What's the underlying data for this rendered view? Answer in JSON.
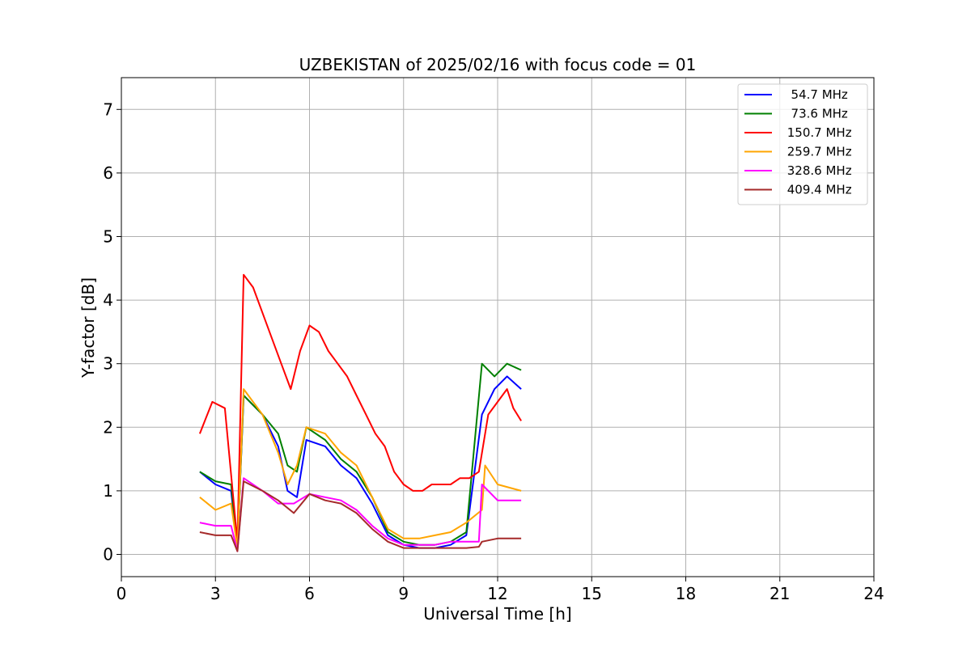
{
  "chart_data": {
    "type": "line",
    "title": "UZBEKISTAN of 2025/02/16 with focus code = 01",
    "xlabel": "Universal Time [h]",
    "ylabel": "Y-factor [dB]",
    "xlim": [
      0,
      24
    ],
    "ylim": [
      -0.35,
      7.5
    ],
    "xticks": [
      0,
      3,
      6,
      9,
      12,
      15,
      18,
      21,
      24
    ],
    "yticks": [
      0,
      1,
      2,
      3,
      4,
      5,
      6,
      7
    ],
    "xtick_labels": [
      "0",
      "3",
      "6",
      "9",
      "12",
      "15",
      "18",
      "21",
      "24"
    ],
    "ytick_labels": [
      "0",
      "1",
      "2",
      "3",
      "4",
      "5",
      "6",
      "7"
    ],
    "grid": true,
    "legend_position": "top-right",
    "series": [
      {
        "name": "  54.7 MHz",
        "color": "#0000ff",
        "x": [
          2.5,
          3.0,
          3.5,
          3.7,
          3.9,
          4.5,
          5.0,
          5.3,
          5.6,
          5.9,
          6.5,
          7.0,
          7.5,
          8.0,
          8.5,
          9.0,
          9.5,
          10.0,
          10.5,
          11.0,
          11.5,
          11.9,
          12.3,
          12.75
        ],
        "y": [
          1.3,
          1.1,
          1.0,
          0.1,
          2.5,
          2.2,
          1.7,
          1.0,
          0.9,
          1.8,
          1.7,
          1.4,
          1.2,
          0.8,
          0.3,
          0.15,
          0.1,
          0.1,
          0.15,
          0.3,
          2.2,
          2.6,
          2.8,
          2.6
        ]
      },
      {
        "name": "  73.6 MHz",
        "color": "#008000",
        "x": [
          2.5,
          3.0,
          3.5,
          3.7,
          3.9,
          4.5,
          5.0,
          5.3,
          5.6,
          5.9,
          6.5,
          7.0,
          7.5,
          8.0,
          8.5,
          9.0,
          9.5,
          10.0,
          10.5,
          11.0,
          11.5,
          11.9,
          12.3,
          12.75
        ],
        "y": [
          1.3,
          1.15,
          1.1,
          0.1,
          2.5,
          2.2,
          1.9,
          1.4,
          1.3,
          2.0,
          1.8,
          1.5,
          1.3,
          0.9,
          0.35,
          0.2,
          0.15,
          0.15,
          0.2,
          0.35,
          3.0,
          2.8,
          3.0,
          2.9
        ]
      },
      {
        "name": " 150.7 MHz",
        "color": "#ff0000",
        "x": [
          2.5,
          2.9,
          3.3,
          3.7,
          3.9,
          4.2,
          4.5,
          4.8,
          5.1,
          5.4,
          5.7,
          6.0,
          6.3,
          6.6,
          6.9,
          7.2,
          7.5,
          7.8,
          8.1,
          8.4,
          8.7,
          9.0,
          9.3,
          9.6,
          9.9,
          10.2,
          10.5,
          10.8,
          11.1,
          11.4,
          11.7,
          12.0,
          12.3,
          12.5,
          12.75
        ],
        "y": [
          1.9,
          2.4,
          2.3,
          0.2,
          4.4,
          4.2,
          3.8,
          3.4,
          3.0,
          2.6,
          3.2,
          3.6,
          3.5,
          3.2,
          3.0,
          2.8,
          2.5,
          2.2,
          1.9,
          1.7,
          1.3,
          1.1,
          1.0,
          1.0,
          1.1,
          1.1,
          1.1,
          1.2,
          1.2,
          1.3,
          2.2,
          2.4,
          2.6,
          2.3,
          2.1
        ]
      },
      {
        "name": " 259.7 MHz",
        "color": "#ffa500",
        "x": [
          2.5,
          3.0,
          3.5,
          3.7,
          3.9,
          4.5,
          5.0,
          5.3,
          5.6,
          5.9,
          6.5,
          7.0,
          7.5,
          8.0,
          8.5,
          9.0,
          9.5,
          10.0,
          10.5,
          11.0,
          11.5,
          11.6,
          12.0,
          12.75
        ],
        "y": [
          0.9,
          0.7,
          0.8,
          0.1,
          2.6,
          2.2,
          1.6,
          1.1,
          1.4,
          2.0,
          1.9,
          1.6,
          1.4,
          0.9,
          0.4,
          0.25,
          0.25,
          0.3,
          0.35,
          0.5,
          0.7,
          1.4,
          1.1,
          1.0
        ]
      },
      {
        "name": " 328.6 MHz",
        "color": "#ff00ff",
        "x": [
          2.5,
          3.0,
          3.5,
          3.7,
          3.9,
          4.5,
          5.0,
          5.5,
          6.0,
          6.5,
          7.0,
          7.5,
          8.0,
          8.5,
          9.0,
          9.5,
          10.0,
          10.5,
          11.0,
          11.4,
          11.5,
          12.0,
          12.75
        ],
        "y": [
          0.5,
          0.45,
          0.45,
          0.05,
          1.2,
          1.0,
          0.8,
          0.8,
          0.95,
          0.9,
          0.85,
          0.7,
          0.45,
          0.25,
          0.15,
          0.15,
          0.15,
          0.2,
          0.2,
          0.2,
          1.1,
          0.85,
          0.85
        ]
      },
      {
        "name": " 409.4 MHz",
        "color": "#a52a2a",
        "x": [
          2.5,
          3.0,
          3.5,
          3.7,
          3.9,
          4.5,
          5.0,
          5.5,
          6.0,
          6.5,
          7.0,
          7.5,
          8.0,
          8.5,
          9.0,
          9.5,
          10.0,
          10.5,
          11.0,
          11.4,
          11.5,
          12.0,
          12.75
        ],
        "y": [
          0.35,
          0.3,
          0.3,
          0.05,
          1.15,
          1.0,
          0.85,
          0.65,
          0.95,
          0.85,
          0.8,
          0.65,
          0.4,
          0.2,
          0.1,
          0.1,
          0.1,
          0.1,
          0.1,
          0.12,
          0.2,
          0.25,
          0.25
        ]
      }
    ]
  }
}
